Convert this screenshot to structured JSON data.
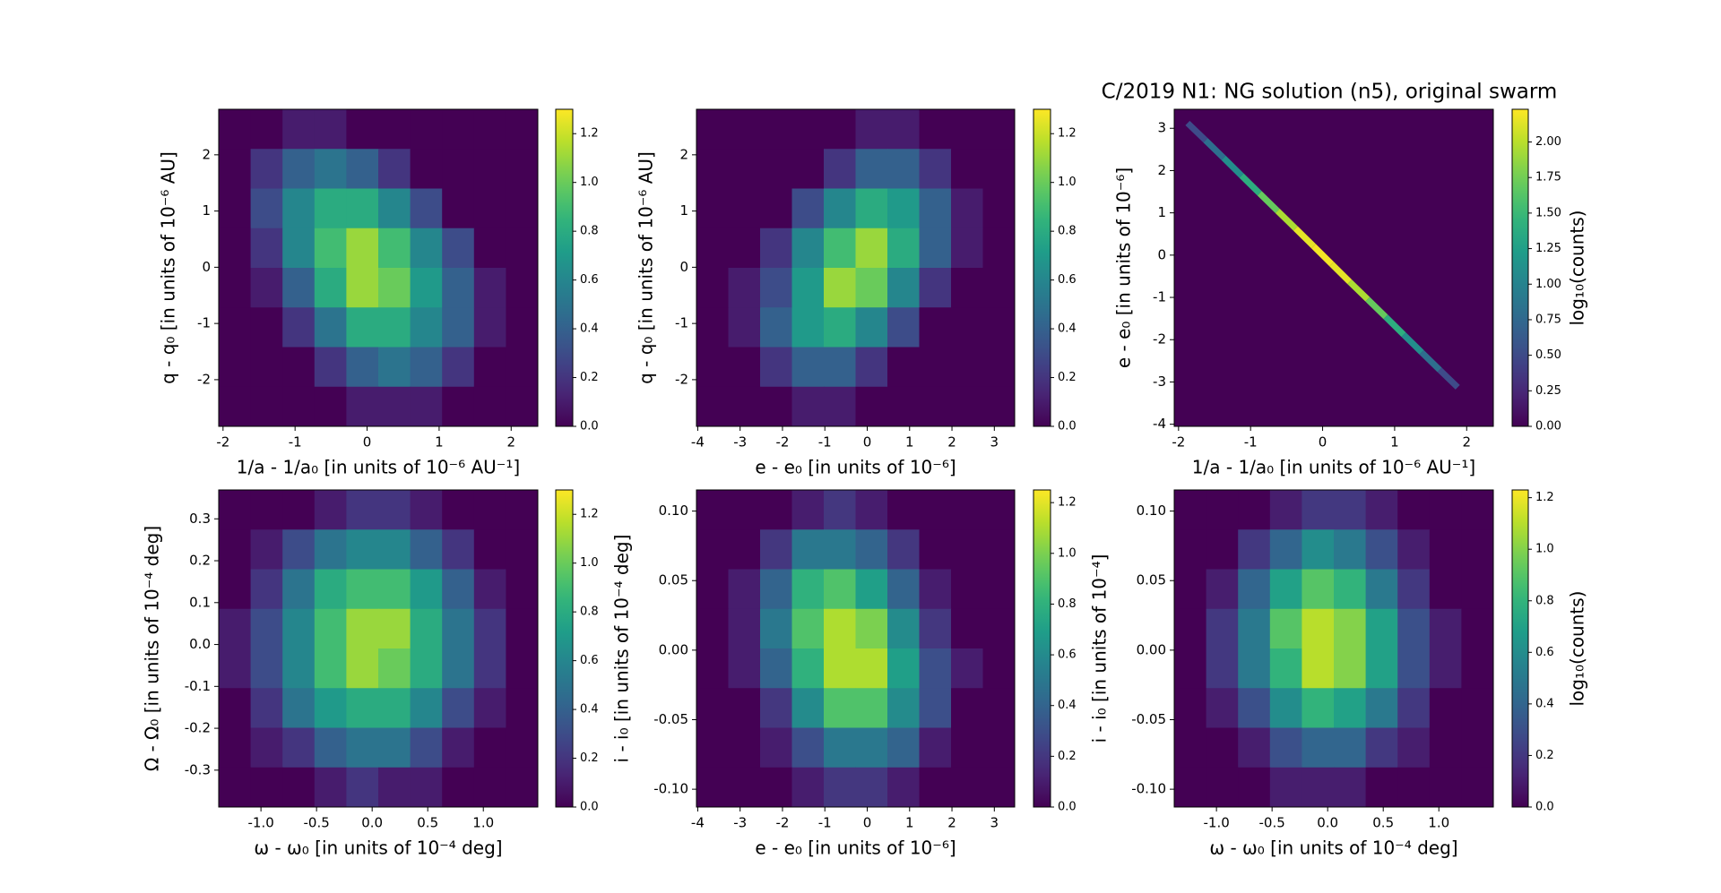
{
  "chart_data": [
    {
      "type": "heatmap",
      "colormap": "viridis",
      "xlabel": "1/a - 1/a₀ [in units of 10⁻⁶ AU⁻¹]",
      "ylabel": "q - q₀ [in units of 10⁻⁶ AU]",
      "xlim": [
        -2.06,
        2.37
      ],
      "ylim": [
        -2.83,
        2.81
      ],
      "xticks": [
        -2,
        -1,
        0,
        1,
        2
      ],
      "yticks": [
        -2,
        -1,
        0,
        1,
        2
      ],
      "clim": [
        0,
        1.3
      ],
      "cticks": [
        {
          "value": 0,
          "label": "0.0"
        },
        0.2,
        0.4,
        0.6,
        0.8,
        {
          "value": 1,
          "label": "1.0"
        },
        1.2
      ],
      "z": [
        [
          0,
          0,
          0.1,
          0.1,
          0,
          0,
          0,
          0,
          0,
          0
        ],
        [
          0,
          0.2,
          0.4,
          0.5,
          0.4,
          0.2,
          0,
          0,
          0,
          0
        ],
        [
          0,
          0.3,
          0.6,
          0.8,
          0.8,
          0.6,
          0.3,
          0,
          0,
          0
        ],
        [
          0,
          0.2,
          0.6,
          0.9,
          1.1,
          0.9,
          0.6,
          0.3,
          0,
          0
        ],
        [
          0,
          0.1,
          0.4,
          0.8,
          1.1,
          1.0,
          0.7,
          0.4,
          0.1,
          0
        ],
        [
          0,
          0,
          0.2,
          0.5,
          0.8,
          0.8,
          0.6,
          0.4,
          0.1,
          0
        ],
        [
          0,
          0,
          0,
          0.2,
          0.4,
          0.5,
          0.4,
          0.2,
          0,
          0
        ],
        [
          0,
          0,
          0,
          0,
          0.1,
          0.1,
          0.1,
          0,
          0,
          0
        ]
      ]
    },
    {
      "type": "heatmap",
      "colormap": "viridis",
      "xlabel": "e - e₀ [in units of 10⁻⁶]",
      "ylabel": "q - q₀ [in units of 10⁻⁶ AU]",
      "xlim": [
        -4.03,
        3.48
      ],
      "ylim": [
        -2.83,
        2.81
      ],
      "xticks": [
        -4,
        -3,
        -2,
        -1,
        0,
        1,
        2,
        3
      ],
      "yticks": [
        -2,
        -1,
        0,
        1,
        2
      ],
      "clim": [
        0,
        1.3
      ],
      "cticks": [
        {
          "value": 0,
          "label": "0.0"
        },
        0.2,
        0.4,
        0.6,
        0.8,
        {
          "value": 1,
          "label": "1.0"
        },
        1.2
      ],
      "z": [
        [
          0,
          0,
          0,
          0,
          0,
          0.1,
          0.1,
          0,
          0,
          0
        ],
        [
          0,
          0,
          0,
          0,
          0.2,
          0.4,
          0.4,
          0.2,
          0,
          0
        ],
        [
          0,
          0,
          0,
          0.3,
          0.6,
          0.8,
          0.7,
          0.4,
          0.1,
          0
        ],
        [
          0,
          0,
          0.2,
          0.6,
          0.9,
          1.1,
          0.8,
          0.4,
          0.1,
          0
        ],
        [
          0,
          0.1,
          0.3,
          0.7,
          1.1,
          1.0,
          0.6,
          0.2,
          0,
          0
        ],
        [
          0,
          0.1,
          0.4,
          0.7,
          0.8,
          0.6,
          0.3,
          0,
          0,
          0
        ],
        [
          0,
          0,
          0.2,
          0.4,
          0.4,
          0.2,
          0,
          0,
          0,
          0
        ],
        [
          0,
          0,
          0,
          0.1,
          0.1,
          0,
          0,
          0,
          0,
          0
        ]
      ]
    },
    {
      "type": "hexbin",
      "colormap": "viridis",
      "title": "C/2019 N1: NG solution (n5),  original swarm",
      "xlabel": "1/a - 1/a₀ [in units of 10⁻⁶ AU⁻¹]",
      "ylabel": "e - e₀ [in units of 10⁻⁶]",
      "xlim": [
        -2.06,
        2.37
      ],
      "ylim": [
        -4.05,
        3.45
      ],
      "xticks": [
        -2,
        -1,
        0,
        1,
        2
      ],
      "yticks": [
        -4,
        -3,
        -2,
        -1,
        0,
        1,
        2,
        3
      ],
      "clim": [
        0,
        2.23
      ],
      "clabel": "log₁₀(counts)",
      "cticks": [
        {
          "value": 0,
          "label": "0.00"
        },
        0.25,
        {
          "value": 0.5,
          "label": "0.50"
        },
        0.75,
        {
          "value": 1,
          "label": "1.00"
        },
        1.25,
        {
          "value": 1.5,
          "label": "1.50"
        },
        1.75,
        {
          "value": 2,
          "label": "2.00"
        }
      ],
      "x": [
        -1.75,
        -1.5,
        -1.25,
        -1,
        -0.75,
        -0.5,
        -0.25,
        0,
        0.25,
        0.5,
        0.75,
        1,
        1.25,
        1.5,
        1.75
      ],
      "y": [
        2.92,
        2.51,
        2.09,
        1.67,
        1.25,
        0.84,
        0.42,
        0,
        -0.42,
        -0.84,
        -1.25,
        -1.67,
        -2.09,
        -2.51,
        -2.92
      ],
      "values": [
        0.5,
        0.8,
        1.1,
        1.4,
        1.7,
        1.95,
        2.15,
        2.2,
        2.15,
        1.95,
        1.7,
        1.4,
        1.1,
        0.8,
        0.5
      ]
    },
    {
      "type": "heatmap",
      "colormap": "viridis",
      "xlabel": "ω - ω₀ [in units of 10⁻⁴ deg]",
      "ylabel": "Ω - Ω₀ [in units of 10⁻⁴ deg]",
      "xlim": [
        -1.38,
        1.49
      ],
      "ylim": [
        -0.388,
        0.369
      ],
      "xticks": [
        {
          "value": -1,
          "label": "-1.0"
        },
        -0.5,
        {
          "value": 0,
          "label": "0.0"
        },
        0.5,
        {
          "value": 1,
          "label": "1.0"
        }
      ],
      "yticks": [
        -0.3,
        -0.2,
        -0.1,
        {
          "value": 0,
          "label": "0.0"
        },
        0.1,
        0.2,
        0.3
      ],
      "clim": [
        0,
        1.3
      ],
      "cticks": [
        {
          "value": 0,
          "label": "0.0"
        },
        0.2,
        0.4,
        0.6,
        0.8,
        {
          "value": 1,
          "label": "1.0"
        },
        1.2
      ],
      "z": [
        [
          0,
          0,
          0,
          0.1,
          0.2,
          0.2,
          0.1,
          0,
          0,
          0
        ],
        [
          0,
          0.1,
          0.3,
          0.5,
          0.6,
          0.6,
          0.4,
          0.2,
          0,
          0
        ],
        [
          0,
          0.2,
          0.5,
          0.8,
          0.9,
          0.9,
          0.7,
          0.4,
          0.1,
          0
        ],
        [
          0.1,
          0.3,
          0.6,
          0.9,
          1.1,
          1.1,
          0.8,
          0.5,
          0.2,
          0
        ],
        [
          0.1,
          0.3,
          0.6,
          0.9,
          1.1,
          1.0,
          0.8,
          0.5,
          0.2,
          0
        ],
        [
          0,
          0.2,
          0.5,
          0.7,
          0.8,
          0.8,
          0.6,
          0.3,
          0.1,
          0
        ],
        [
          0,
          0.1,
          0.2,
          0.4,
          0.5,
          0.5,
          0.3,
          0.1,
          0,
          0
        ],
        [
          0,
          0,
          0,
          0.1,
          0.2,
          0.1,
          0.1,
          0,
          0,
          0
        ]
      ]
    },
    {
      "type": "heatmap",
      "colormap": "viridis",
      "xlabel": "e - e₀ [in units of 10⁻⁶]",
      "ylabel": "i - i₀ [in units of 10⁻⁴ deg]",
      "xlim": [
        -4.03,
        3.48
      ],
      "ylim": [
        -0.1128,
        0.1152
      ],
      "xticks": [
        -4,
        -3,
        -2,
        -1,
        0,
        1,
        2,
        3
      ],
      "yticks": [
        {
          "value": -0.1,
          "label": "-0.10"
        },
        -0.05,
        {
          "value": 0,
          "label": "0.00"
        },
        0.05,
        {
          "value": 0.1,
          "label": "0.10"
        }
      ],
      "clim": [
        0,
        1.25
      ],
      "cticks": [
        {
          "value": 0,
          "label": "0.0"
        },
        0.2,
        0.4,
        0.6,
        0.8,
        {
          "value": 1,
          "label": "1.0"
        },
        1.2
      ],
      "z": [
        [
          0,
          0,
          0,
          0.1,
          0.2,
          0.1,
          0,
          0,
          0,
          0
        ],
        [
          0,
          0,
          0.2,
          0.5,
          0.5,
          0.4,
          0.2,
          0,
          0,
          0
        ],
        [
          0,
          0.1,
          0.4,
          0.8,
          0.9,
          0.7,
          0.4,
          0.1,
          0,
          0
        ],
        [
          0,
          0.1,
          0.5,
          0.9,
          1.1,
          1.0,
          0.6,
          0.2,
          0,
          0
        ],
        [
          0,
          0.1,
          0.4,
          0.8,
          1.1,
          1.1,
          0.7,
          0.3,
          0.1,
          0
        ],
        [
          0,
          0,
          0.2,
          0.6,
          0.9,
          0.9,
          0.6,
          0.3,
          0,
          0
        ],
        [
          0,
          0,
          0.1,
          0.3,
          0.5,
          0.5,
          0.4,
          0.1,
          0,
          0
        ],
        [
          0,
          0,
          0,
          0.1,
          0.2,
          0.2,
          0.1,
          0,
          0,
          0
        ]
      ]
    },
    {
      "type": "heatmap",
      "colormap": "viridis",
      "xlabel": "ω - ω₀ [in units of 10⁻⁴ deg]",
      "ylabel": "i - i₀ [in units of 10⁻⁴]",
      "xlim": [
        -1.38,
        1.49
      ],
      "ylim": [
        -0.1128,
        0.1152
      ],
      "xticks": [
        {
          "value": -1,
          "label": "-1.0"
        },
        -0.5,
        {
          "value": 0,
          "label": "0.0"
        },
        0.5,
        {
          "value": 1,
          "label": "1.0"
        }
      ],
      "yticks": [
        {
          "value": -0.1,
          "label": "-0.10"
        },
        -0.05,
        {
          "value": 0,
          "label": "0.00"
        },
        0.05,
        {
          "value": 0.1,
          "label": "0.10"
        }
      ],
      "clim": [
        0,
        1.23
      ],
      "clabel": "log₁₀(counts)",
      "cticks": [
        {
          "value": 0,
          "label": "0.0"
        },
        0.2,
        0.4,
        0.6,
        0.8,
        {
          "value": 1,
          "label": "1.0"
        },
        1.2
      ],
      "z": [
        [
          0,
          0,
          0,
          0.1,
          0.2,
          0.2,
          0.1,
          0,
          0,
          0
        ],
        [
          0,
          0,
          0.2,
          0.4,
          0.6,
          0.5,
          0.3,
          0.1,
          0,
          0
        ],
        [
          0,
          0.1,
          0.4,
          0.7,
          0.9,
          0.8,
          0.5,
          0.2,
          0,
          0
        ],
        [
          0,
          0.2,
          0.5,
          0.9,
          1.1,
          1.0,
          0.7,
          0.3,
          0.1,
          0
        ],
        [
          0,
          0.2,
          0.5,
          0.8,
          1.1,
          1.0,
          0.7,
          0.3,
          0.1,
          0
        ],
        [
          0,
          0.1,
          0.3,
          0.6,
          0.8,
          0.7,
          0.5,
          0.2,
          0,
          0
        ],
        [
          0,
          0,
          0.1,
          0.3,
          0.4,
          0.4,
          0.2,
          0.1,
          0,
          0
        ],
        [
          0,
          0,
          0,
          0.1,
          0.1,
          0.1,
          0,
          0,
          0,
          0
        ]
      ]
    }
  ]
}
